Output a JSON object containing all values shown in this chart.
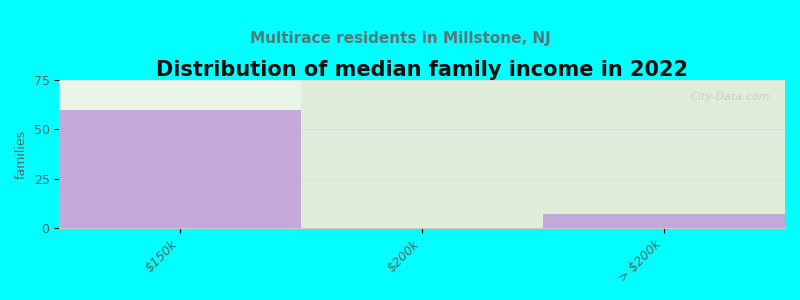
{
  "title": "Distribution of median family income in 2022",
  "subtitle": "Multirace residents in Millstone, NJ",
  "watermark": "City-Data.com",
  "categories": [
    "$150k",
    "$200k",
    "> $200k"
  ],
  "values": [
    60,
    0,
    7
  ],
  "bar_color": "#c4a8d8",
  "col0_bg": "#eaf5ea",
  "col12_bg": "#e0edda",
  "ylim": [
    0,
    75
  ],
  "yticks": [
    0,
    25,
    50,
    75
  ],
  "ylabel": "families",
  "background_color": "#00ffff",
  "plot_bg_color": "#f0f8f0",
  "title_fontsize": 15,
  "subtitle_fontsize": 11,
  "subtitle_color": "#557777",
  "watermark_color": "#c0cfc0",
  "title_color": "#111111"
}
